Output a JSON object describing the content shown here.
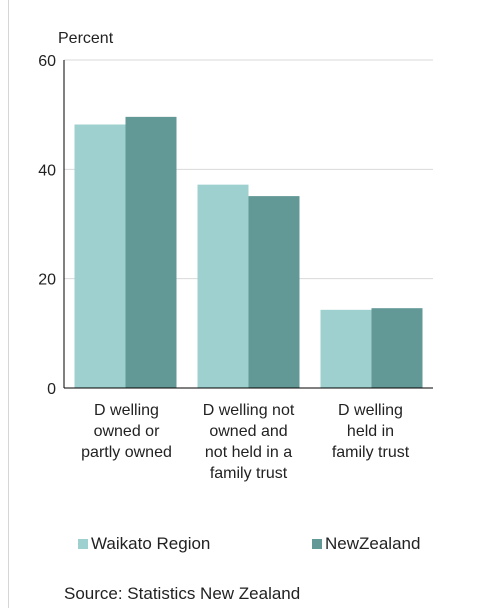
{
  "chart_data": {
    "type": "bar",
    "ylabel": "Percent",
    "ylim": [
      0,
      60
    ],
    "yticks": [
      0,
      20,
      40,
      60
    ],
    "categories": [
      "D welling\nowned or\npartly owned",
      "D welling not\nowned and\nnot held in a\nfamily trust",
      "D welling\nheld in\nfamily trust"
    ],
    "series": [
      {
        "name": "Waikato Region",
        "values": [
          48.2,
          37.2,
          14.3
        ],
        "color": "#9dd0ce"
      },
      {
        "name": "NewZealand",
        "values": [
          49.6,
          35.1,
          14.6
        ],
        "color": "#629896"
      }
    ],
    "grid": true,
    "legend": "bottom"
  },
  "source": "Source: Statistics New Zealand"
}
